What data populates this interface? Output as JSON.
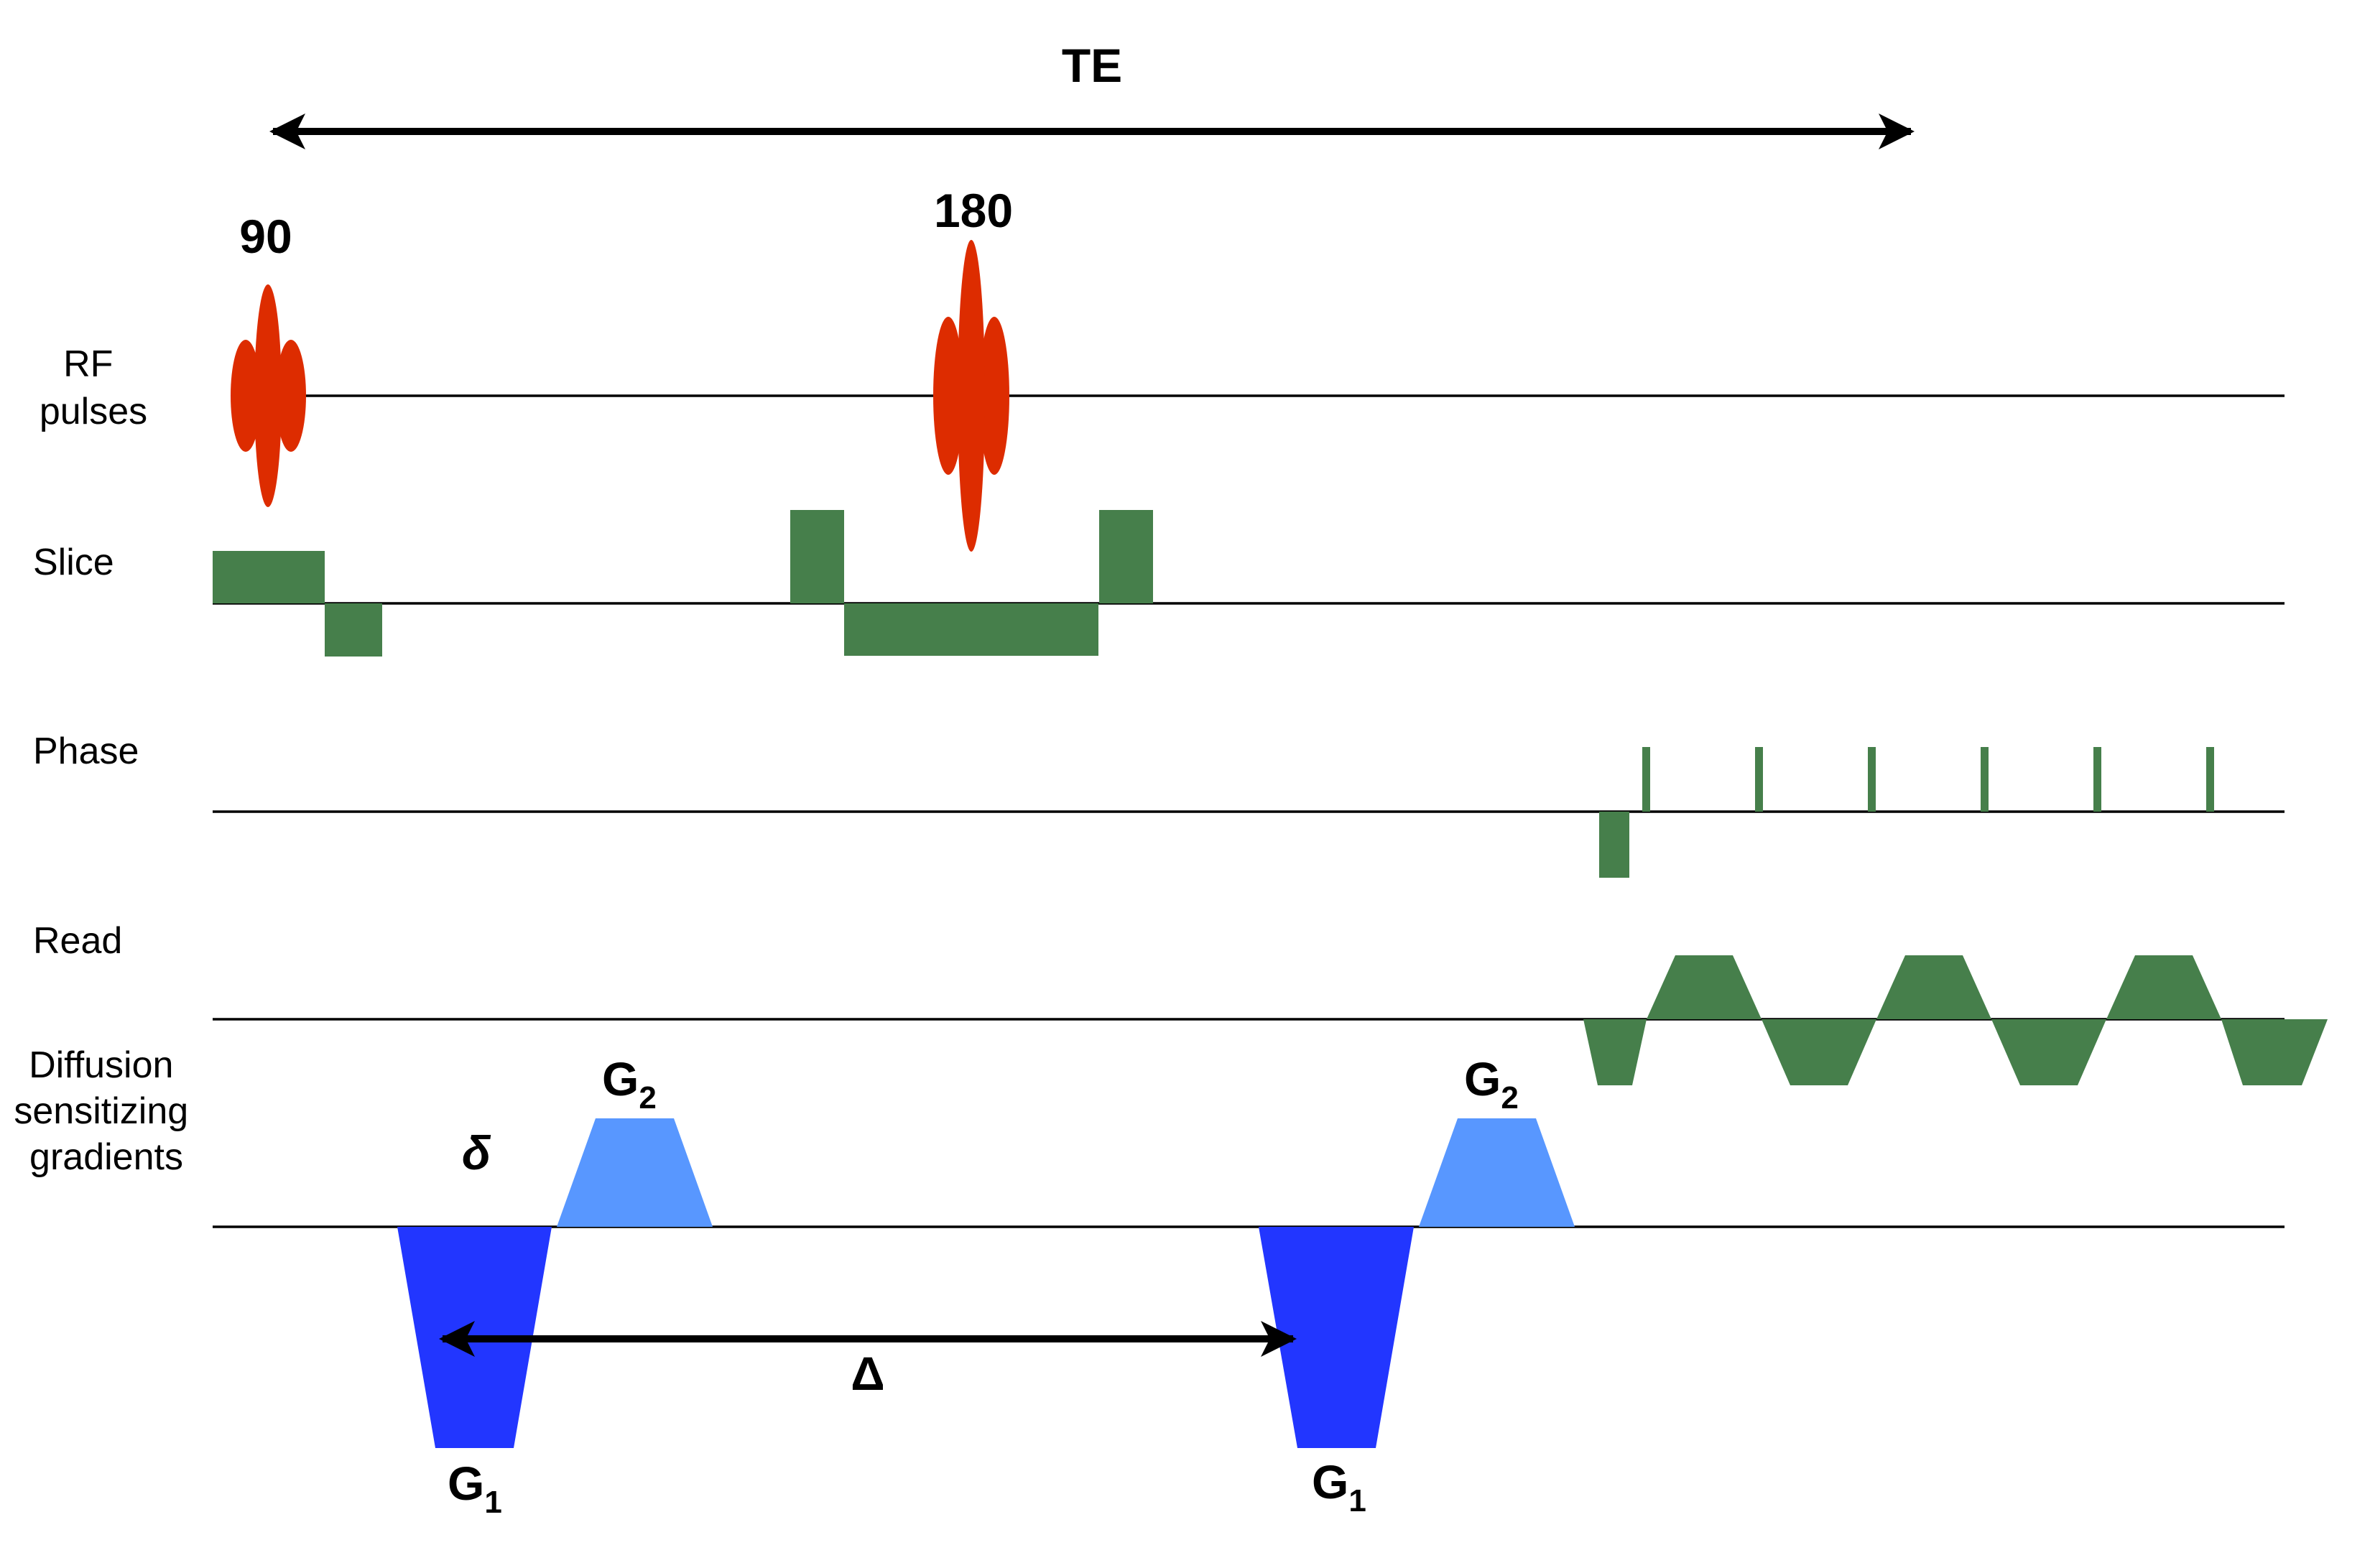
{
  "colors": {
    "rf_pulse": "#dd2c00",
    "gradient_green": "#467f4b",
    "diffusion_g1": "#2236ff",
    "diffusion_g2": "#5897ff",
    "axis": "#000000"
  },
  "labels": {
    "te": "TE",
    "rf_90": "90",
    "rf_180": "180",
    "delta_small": "δ",
    "delta_big": "Δ",
    "g_letter": "G",
    "g1_sub": "1",
    "g2_sub": "2"
  },
  "rows": {
    "rf": [
      "RF",
      "pulses"
    ],
    "slice": "Slice",
    "phase": "Phase",
    "read": "Read",
    "diffusion": [
      "Diffusion",
      "sensitizing",
      "gradients"
    ]
  }
}
